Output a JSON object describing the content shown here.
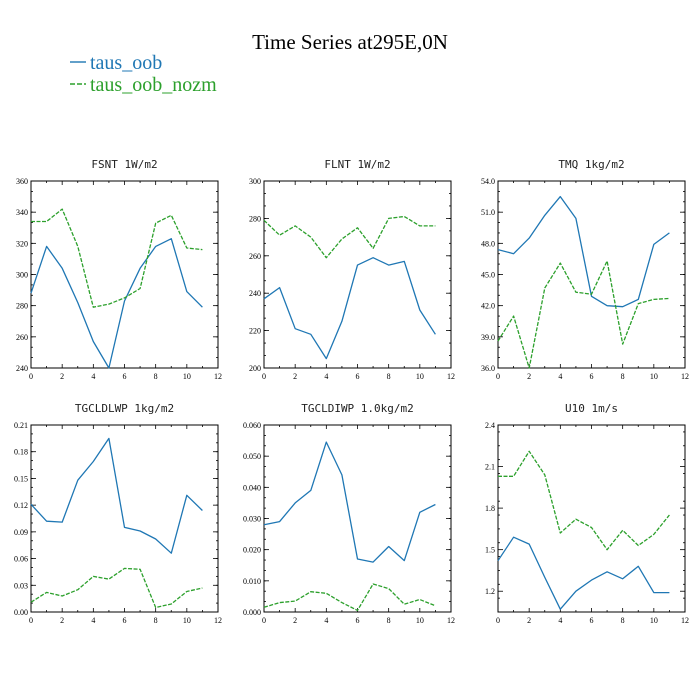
{
  "figure": {
    "title": "Time Series at295E,0N"
  },
  "colors": {
    "taus_oob": "#1f77b4",
    "taus_oob_nozm": "#2ca02c"
  },
  "legend": [
    {
      "name": "taus_oob",
      "color": "#1f77b4",
      "dash": "solid"
    },
    {
      "name": "taus_oob_nozm",
      "color": "#2ca02c",
      "dash": "dashed"
    }
  ],
  "chart_data": [
    {
      "type": "line",
      "title": "FSNT   1W/m2",
      "x": [
        0,
        1,
        2,
        3,
        4,
        5,
        6,
        7,
        8,
        9,
        10,
        11
      ],
      "xlim": [
        0,
        12
      ],
      "xticks": [
        "0",
        "2",
        "4",
        "6",
        "8",
        "10",
        "12"
      ],
      "ylim": [
        240,
        360
      ],
      "yticks": [
        "240",
        "260",
        "280",
        "300",
        "320",
        "340",
        "360"
      ],
      "series": [
        {
          "name": "taus_oob",
          "values": [
            288,
            318,
            304,
            282,
            257,
            240,
            283,
            304,
            318,
            323,
            289,
            279
          ]
        },
        {
          "name": "taus_oob_nozm",
          "values": [
            334,
            334,
            342,
            318,
            279,
            281,
            285,
            291,
            333,
            338,
            317,
            316
          ]
        }
      ]
    },
    {
      "type": "line",
      "title": "FLNT   1W/m2",
      "x": [
        0,
        1,
        2,
        3,
        4,
        5,
        6,
        7,
        8,
        9,
        10,
        11
      ],
      "xlim": [
        0,
        12
      ],
      "xticks": [
        "0",
        "2",
        "4",
        "6",
        "8",
        "10",
        "12"
      ],
      "ylim": [
        200,
        300
      ],
      "yticks": [
        "200",
        "220",
        "240",
        "260",
        "280",
        "300"
      ],
      "series": [
        {
          "name": "taus_oob",
          "values": [
            237,
            243,
            221,
            218,
            205,
            225,
            255,
            259,
            255,
            257,
            231,
            218
          ]
        },
        {
          "name": "taus_oob_nozm",
          "values": [
            279,
            271,
            276,
            270,
            259,
            269,
            275,
            264,
            280,
            281,
            276,
            276
          ]
        }
      ]
    },
    {
      "type": "line",
      "title": "TMQ   1kg/m2",
      "x": [
        0,
        1,
        2,
        3,
        4,
        5,
        6,
        7,
        8,
        9,
        10,
        11
      ],
      "xlim": [
        0,
        12
      ],
      "xticks": [
        "0",
        "2",
        "4",
        "6",
        "8",
        "10",
        "12"
      ],
      "ylim": [
        36,
        54
      ],
      "yticks": [
        "36.0",
        "39.0",
        "42.0",
        "45.0",
        "48.0",
        "51.0",
        "54.0"
      ],
      "series": [
        {
          "name": "taus_oob",
          "values": [
            47.4,
            47.0,
            48.5,
            50.7,
            52.5,
            50.4,
            42.9,
            42.0,
            41.9,
            42.6,
            47.9,
            49.0
          ]
        },
        {
          "name": "taus_oob_nozm",
          "values": [
            38.6,
            41.0,
            36.0,
            43.7,
            46.1,
            43.3,
            43.1,
            46.3,
            38.3,
            42.2,
            42.6,
            42.7
          ]
        }
      ]
    },
    {
      "type": "line",
      "title": "TGCLDLWP   1kg/m2",
      "x": [
        0,
        1,
        2,
        3,
        4,
        5,
        6,
        7,
        8,
        9,
        10,
        11
      ],
      "xlim": [
        0,
        12
      ],
      "xticks": [
        "0",
        "2",
        "4",
        "6",
        "8",
        "10",
        "12"
      ],
      "ylim": [
        0,
        0.21
      ],
      "yticks": [
        "0.00",
        "0.03",
        "0.06",
        "0.09",
        "0.12",
        "0.15",
        "0.18",
        "0.21"
      ],
      "series": [
        {
          "name": "taus_oob",
          "values": [
            0.121,
            0.102,
            0.101,
            0.148,
            0.169,
            0.195,
            0.095,
            0.091,
            0.082,
            0.066,
            0.131,
            0.114
          ]
        },
        {
          "name": "taus_oob_nozm",
          "values": [
            0.011,
            0.022,
            0.018,
            0.025,
            0.04,
            0.037,
            0.049,
            0.048,
            0.005,
            0.009,
            0.023,
            0.027
          ]
        }
      ]
    },
    {
      "type": "line",
      "title": "TGCLDIWP   1.0kg/m2",
      "x": [
        0,
        1,
        2,
        3,
        4,
        5,
        6,
        7,
        8,
        9,
        10,
        11
      ],
      "xlim": [
        0,
        12
      ],
      "xticks": [
        "0",
        "2",
        "4",
        "6",
        "8",
        "10",
        "12"
      ],
      "ylim": [
        0,
        0.06
      ],
      "yticks": [
        "0.000",
        "0.010",
        "0.020",
        "0.030",
        "0.040",
        "0.050",
        "0.060"
      ],
      "series": [
        {
          "name": "taus_oob",
          "values": [
            0.028,
            0.029,
            0.035,
            0.039,
            0.0545,
            0.044,
            0.017,
            0.016,
            0.021,
            0.0165,
            0.032,
            0.0345
          ]
        },
        {
          "name": "taus_oob_nozm",
          "values": [
            0.0015,
            0.003,
            0.0035,
            0.0065,
            0.006,
            0.003,
            0.0005,
            0.009,
            0.0075,
            0.0025,
            0.004,
            0.002
          ]
        }
      ]
    },
    {
      "type": "line",
      "title": "U10   1m/s",
      "x": [
        0,
        1,
        2,
        3,
        4,
        5,
        6,
        7,
        8,
        9,
        10,
        11
      ],
      "xlim": [
        0,
        12
      ],
      "xticks": [
        "0",
        "2",
        "4",
        "6",
        "8",
        "10",
        "12"
      ],
      "ylim": [
        1.05,
        2.4
      ],
      "yticks": [
        "1.2",
        "1.5",
        "1.8",
        "2.1",
        "2.4"
      ],
      "series": [
        {
          "name": "taus_oob",
          "values": [
            1.42,
            1.59,
            1.54,
            1.3,
            1.07,
            1.2,
            1.28,
            1.34,
            1.29,
            1.38,
            1.19,
            1.19
          ]
        },
        {
          "name": "taus_oob_nozm",
          "values": [
            2.03,
            2.03,
            2.21,
            2.04,
            1.62,
            1.72,
            1.66,
            1.5,
            1.64,
            1.53,
            1.61,
            1.75
          ]
        }
      ]
    }
  ]
}
